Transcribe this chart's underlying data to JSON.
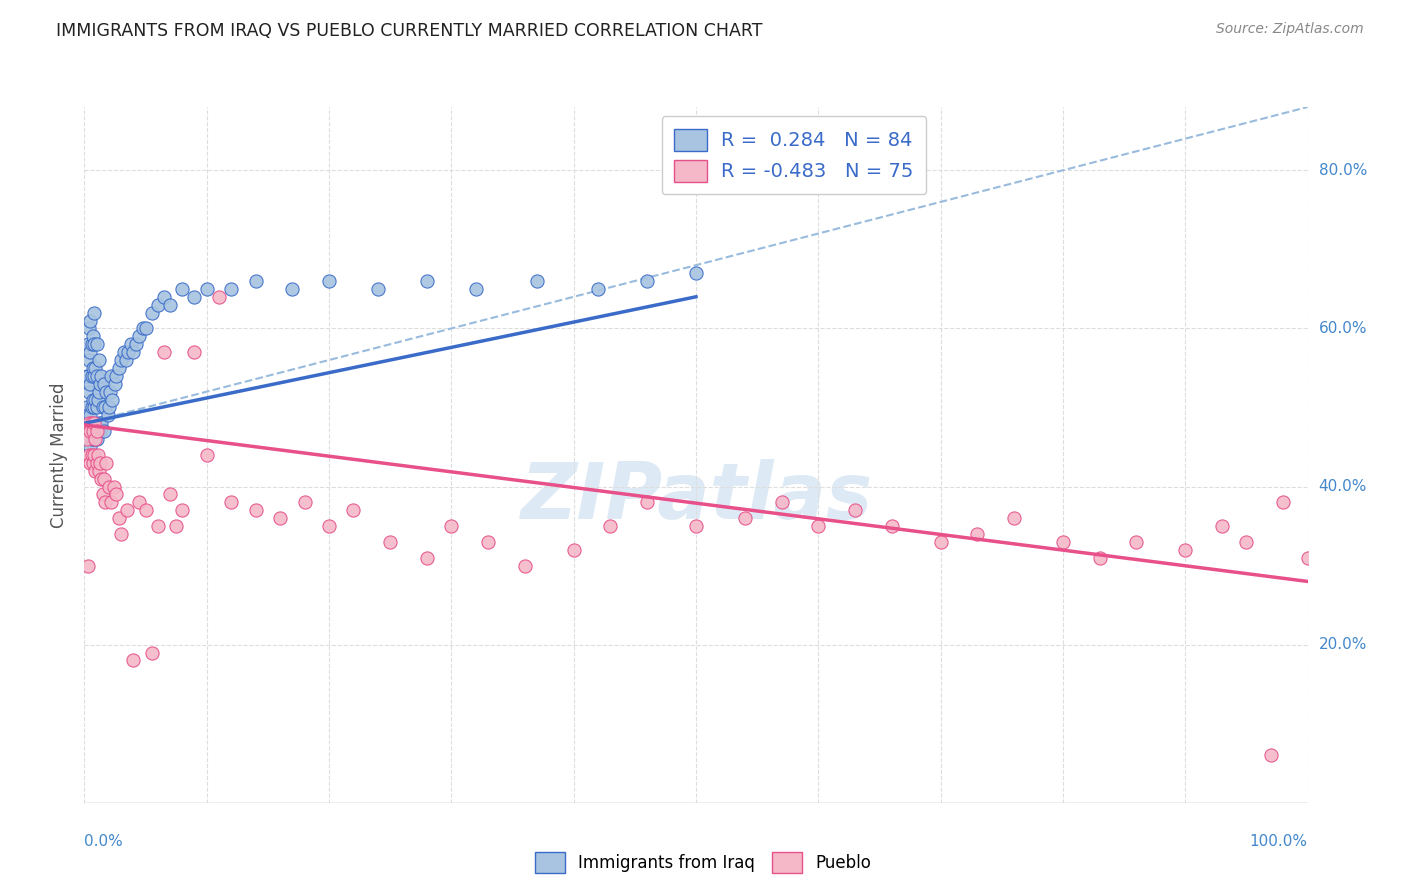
{
  "title": "IMMIGRANTS FROM IRAQ VS PUEBLO CURRENTLY MARRIED CORRELATION CHART",
  "source": "Source: ZipAtlas.com",
  "ylabel": "Currently Married",
  "legend_iraq": "Immigrants from Iraq",
  "legend_pueblo": "Pueblo",
  "iraq_R": 0.284,
  "iraq_N": 84,
  "pueblo_R": -0.483,
  "pueblo_N": 75,
  "iraq_color": "#a8c4e0",
  "iraq_line_color": "#3a6bc9",
  "pueblo_color": "#f4b8c8",
  "pueblo_line_color": "#e8508a",
  "watermark": "ZIPatlas",
  "xlim": [
    0.0,
    1.0
  ],
  "ylim": [
    0.0,
    0.88
  ],
  "iraq_scatter_x": [
    0.002,
    0.002,
    0.003,
    0.003,
    0.003,
    0.004,
    0.004,
    0.004,
    0.004,
    0.005,
    0.005,
    0.005,
    0.005,
    0.005,
    0.006,
    0.006,
    0.006,
    0.006,
    0.007,
    0.007,
    0.007,
    0.007,
    0.008,
    0.008,
    0.008,
    0.008,
    0.008,
    0.009,
    0.009,
    0.009,
    0.01,
    0.01,
    0.01,
    0.01,
    0.011,
    0.011,
    0.012,
    0.012,
    0.012,
    0.013,
    0.013,
    0.014,
    0.014,
    0.015,
    0.016,
    0.016,
    0.017,
    0.018,
    0.019,
    0.02,
    0.021,
    0.022,
    0.023,
    0.025,
    0.026,
    0.028,
    0.03,
    0.032,
    0.034,
    0.036,
    0.038,
    0.04,
    0.042,
    0.045,
    0.048,
    0.05,
    0.055,
    0.06,
    0.065,
    0.07,
    0.08,
    0.09,
    0.1,
    0.12,
    0.14,
    0.17,
    0.2,
    0.24,
    0.28,
    0.32,
    0.37,
    0.42,
    0.46,
    0.5
  ],
  "iraq_scatter_y": [
    0.5,
    0.54,
    0.49,
    0.54,
    0.58,
    0.48,
    0.52,
    0.56,
    0.6,
    0.45,
    0.49,
    0.53,
    0.57,
    0.61,
    0.46,
    0.5,
    0.54,
    0.58,
    0.47,
    0.51,
    0.55,
    0.59,
    0.46,
    0.5,
    0.54,
    0.58,
    0.62,
    0.47,
    0.51,
    0.55,
    0.46,
    0.5,
    0.54,
    0.58,
    0.47,
    0.51,
    0.48,
    0.52,
    0.56,
    0.47,
    0.53,
    0.48,
    0.54,
    0.5,
    0.47,
    0.53,
    0.5,
    0.52,
    0.49,
    0.5,
    0.52,
    0.54,
    0.51,
    0.53,
    0.54,
    0.55,
    0.56,
    0.57,
    0.56,
    0.57,
    0.58,
    0.57,
    0.58,
    0.59,
    0.6,
    0.6,
    0.62,
    0.63,
    0.64,
    0.63,
    0.65,
    0.64,
    0.65,
    0.65,
    0.66,
    0.65,
    0.66,
    0.65,
    0.66,
    0.65,
    0.66,
    0.65,
    0.66,
    0.67
  ],
  "pueblo_scatter_x": [
    0.002,
    0.003,
    0.004,
    0.004,
    0.005,
    0.005,
    0.006,
    0.006,
    0.007,
    0.007,
    0.008,
    0.008,
    0.009,
    0.009,
    0.01,
    0.01,
    0.011,
    0.012,
    0.013,
    0.014,
    0.015,
    0.016,
    0.017,
    0.018,
    0.02,
    0.022,
    0.024,
    0.026,
    0.028,
    0.03,
    0.035,
    0.04,
    0.045,
    0.05,
    0.055,
    0.06,
    0.065,
    0.07,
    0.075,
    0.08,
    0.09,
    0.1,
    0.11,
    0.12,
    0.14,
    0.16,
    0.18,
    0.2,
    0.22,
    0.25,
    0.28,
    0.3,
    0.33,
    0.36,
    0.4,
    0.43,
    0.46,
    0.5,
    0.54,
    0.57,
    0.6,
    0.63,
    0.66,
    0.7,
    0.73,
    0.76,
    0.8,
    0.83,
    0.86,
    0.9,
    0.93,
    0.95,
    0.97,
    0.98,
    1.0
  ],
  "pueblo_scatter_y": [
    0.46,
    0.3,
    0.44,
    0.48,
    0.43,
    0.47,
    0.44,
    0.48,
    0.43,
    0.47,
    0.44,
    0.48,
    0.42,
    0.46,
    0.43,
    0.47,
    0.44,
    0.42,
    0.43,
    0.41,
    0.39,
    0.41,
    0.38,
    0.43,
    0.4,
    0.38,
    0.4,
    0.39,
    0.36,
    0.34,
    0.37,
    0.18,
    0.38,
    0.37,
    0.19,
    0.35,
    0.57,
    0.39,
    0.35,
    0.37,
    0.57,
    0.44,
    0.64,
    0.38,
    0.37,
    0.36,
    0.38,
    0.35,
    0.37,
    0.33,
    0.31,
    0.35,
    0.33,
    0.3,
    0.32,
    0.35,
    0.38,
    0.35,
    0.36,
    0.38,
    0.35,
    0.37,
    0.35,
    0.33,
    0.34,
    0.36,
    0.33,
    0.31,
    0.33,
    0.32,
    0.35,
    0.33,
    0.06,
    0.38,
    0.31
  ],
  "iraq_trendline_x": [
    0.0,
    0.5
  ],
  "iraq_trendline_y": [
    0.48,
    0.64
  ],
  "pueblo_trendline_x": [
    0.0,
    1.0
  ],
  "pueblo_trendline_y": [
    0.478,
    0.28
  ],
  "dashed_line_x": [
    0.0,
    1.0
  ],
  "dashed_line_y": [
    0.48,
    0.88
  ],
  "ytick_positions": [
    0.2,
    0.4,
    0.6,
    0.8
  ],
  "ytick_labels": [
    "20.0%",
    "40.0%",
    "60.0%",
    "80.0%"
  ],
  "xtick_positions": [
    0.0,
    0.1,
    0.2,
    0.3,
    0.4,
    0.5,
    0.6,
    0.7,
    0.8,
    0.9,
    1.0
  ],
  "background_color": "#ffffff",
  "grid_color": "#dddddd"
}
